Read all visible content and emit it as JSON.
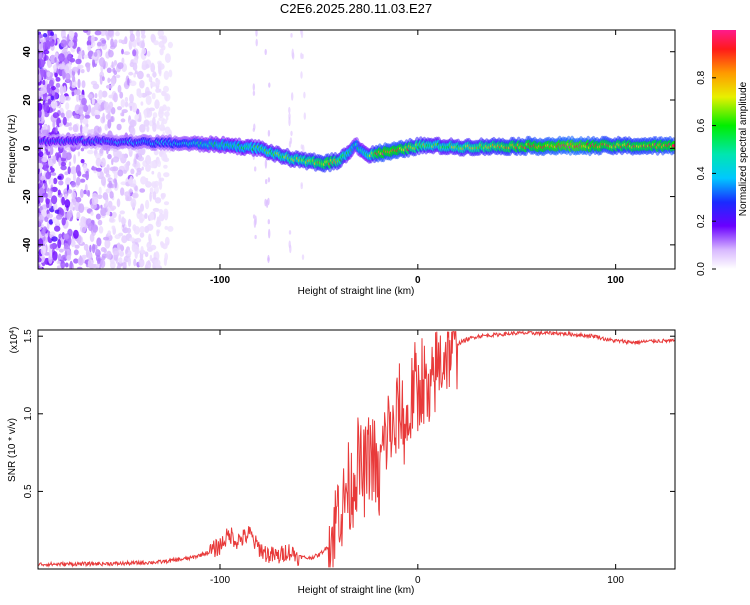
{
  "chart_data": [
    {
      "type": "heatmap",
      "title": "C2E6.2025.280.11.03.E27",
      "xlabel": "Height of straight line (km)",
      "ylabel": "Frequency (Hz)",
      "xlim": [
        -192,
        130
      ],
      "ylim": [
        -50,
        49
      ],
      "x_ticks": [
        -100,
        0,
        100
      ],
      "x_tick_labels": [
        "-100",
        "0",
        "100"
      ],
      "y_ticks": [
        -40,
        -20,
        0,
        20,
        40
      ],
      "y_tick_labels": [
        "-40",
        "-20",
        "0",
        "20",
        "40"
      ],
      "colorbar": {
        "label": "Normalized spectral amplitude",
        "range": [
          0,
          1
        ],
        "ticks": [
          0.0,
          0.2,
          0.4,
          0.6,
          0.8
        ],
        "tick_labels": [
          "0.0",
          "0.2",
          "0.4",
          "0.6",
          "0.8"
        ]
      },
      "ridge": {
        "x": [
          -192,
          -160,
          -140,
          -120,
          -100,
          -80,
          -70,
          -60,
          -50,
          -45,
          -40,
          -35,
          -32,
          -28,
          -25,
          -20,
          -10,
          0,
          10,
          20,
          40,
          60,
          80,
          100,
          130
        ],
        "freq": [
          3,
          3,
          2.5,
          2,
          1.5,
          0,
          -3,
          -5,
          -6,
          -6,
          -5,
          -2,
          2,
          -1,
          -3,
          -2,
          -1,
          1,
          1,
          0.5,
          0.8,
          1,
          1,
          1,
          1
        ],
        "amplitude": [
          0.25,
          0.3,
          0.35,
          0.4,
          0.5,
          0.55,
          0.6,
          0.65,
          0.75,
          0.8,
          0.7,
          0.55,
          0.45,
          0.5,
          0.55,
          0.85,
          0.85,
          0.7,
          0.6,
          0.65,
          0.75,
          0.85,
          0.9,
          0.8,
          0.85
        ]
      },
      "noise_region_x": [
        -192,
        -125
      ]
    },
    {
      "type": "line",
      "xlabel": "Height of straight line (km)",
      "ylabel": "SNR (10 * v/v)",
      "y_scale_label": "(x10",
      "y_scale_exponent": "4",
      "xlim": [
        -192,
        130
      ],
      "ylim": [
        0,
        15400
      ],
      "x_ticks": [
        -100,
        0,
        100
      ],
      "x_tick_labels": [
        "-100",
        "0",
        "100"
      ],
      "y_ticks": [
        5000,
        10000,
        15000
      ],
      "y_tick_labels": [
        "0.5",
        "1.0",
        "1.5"
      ],
      "series": [
        {
          "name": "SNR",
          "color": "#e83a3a",
          "x": [
            -192,
            -150,
            -130,
            -115,
            -105,
            -100,
            -97,
            -94,
            -92,
            -88,
            -85,
            -82,
            -78,
            -75,
            -70,
            -66,
            -63,
            -60,
            -55,
            -50,
            -45,
            -42,
            -40,
            -38,
            -36,
            -34,
            -30,
            -28,
            -26,
            -24,
            -22,
            -20,
            -18,
            -16,
            -14,
            -12,
            -10,
            -8,
            -6,
            -4,
            -2,
            0,
            2,
            4,
            6,
            8,
            10,
            12,
            15,
            20,
            25,
            30,
            40,
            50,
            60,
            70,
            80,
            90,
            95,
            100,
            110,
            120,
            130
          ],
          "y": [
            300,
            350,
            450,
            700,
            1100,
            1500,
            2000,
            2200,
            1800,
            2000,
            2300,
            1600,
            1100,
            900,
            800,
            1200,
            1000,
            800,
            700,
            900,
            1500,
            2500,
            4500,
            3500,
            5500,
            5000,
            7000,
            6000,
            6500,
            7500,
            7000,
            5000,
            7500,
            8500,
            9500,
            8000,
            10500,
            10000,
            9000,
            10000,
            12000,
            11000,
            12500,
            11500,
            10000,
            12500,
            13000,
            13500,
            14200,
            14500,
            14800,
            15000,
            15100,
            15200,
            15200,
            15200,
            15100,
            15000,
            14800,
            14700,
            14600,
            14700,
            14700
          ]
        }
      ]
    }
  ]
}
